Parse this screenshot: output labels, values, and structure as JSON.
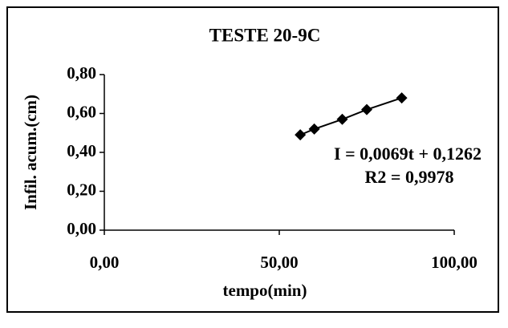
{
  "chart_data": {
    "type": "scatter",
    "title": "TESTE 20-9C",
    "x_label": "tempo(min)",
    "y_label": "Infil. acum.(cm)",
    "annotations": [
      "I = 0,0069t + 0,1262",
      "R2 = 0,9978"
    ],
    "x": [
      56,
      60,
      68,
      75,
      85
    ],
    "series": [
      {
        "color": "#000000",
        "values": [
          0.49,
          0.52,
          0.57,
          0.62,
          0.68
        ]
      }
    ],
    "xlim": [
      0,
      100
    ],
    "xticks": [
      {
        "value": 0,
        "label": "0,00"
      },
      {
        "value": 50,
        "label": "50,00"
      },
      {
        "value": 100,
        "label": "100,00"
      }
    ],
    "ylim": [
      0,
      0.8
    ],
    "yticks": [
      {
        "value": 0,
        "label": "0,00"
      },
      {
        "value": 0.2,
        "label": "0,20"
      },
      {
        "value": 0.4,
        "label": "0,40"
      },
      {
        "value": 0.6,
        "label": "0,60"
      },
      {
        "value": 0.8,
        "label": "0,80"
      }
    ]
  }
}
